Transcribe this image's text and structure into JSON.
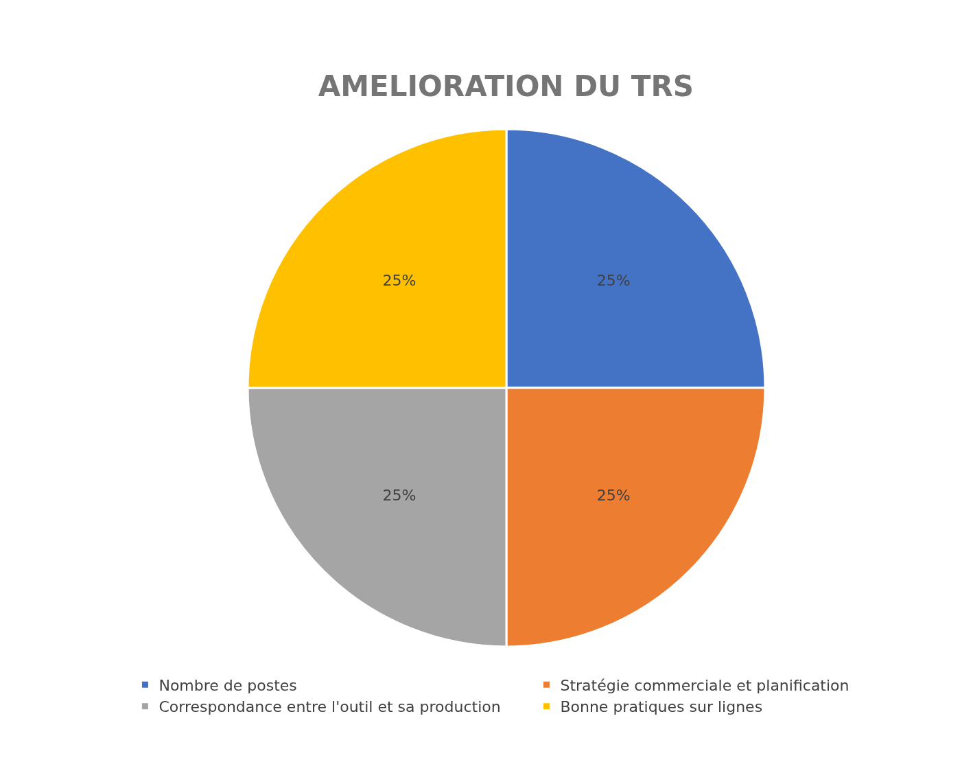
{
  "chart_data": {
    "type": "pie",
    "title": "AMELIORATION DU TRS",
    "categories": [
      "Nombre de postes",
      "Stratégie commerciale et planification",
      "Correspondance entre l'outil et sa production",
      "Bonne pratiques sur lignes"
    ],
    "values": [
      25,
      25,
      25,
      25
    ],
    "colors": [
      "#4472c4",
      "#ed7d31",
      "#a5a5a5",
      "#ffc000"
    ],
    "value_labels": [
      "25%",
      "25%",
      "25%",
      "25%"
    ],
    "legend": "bottom"
  }
}
